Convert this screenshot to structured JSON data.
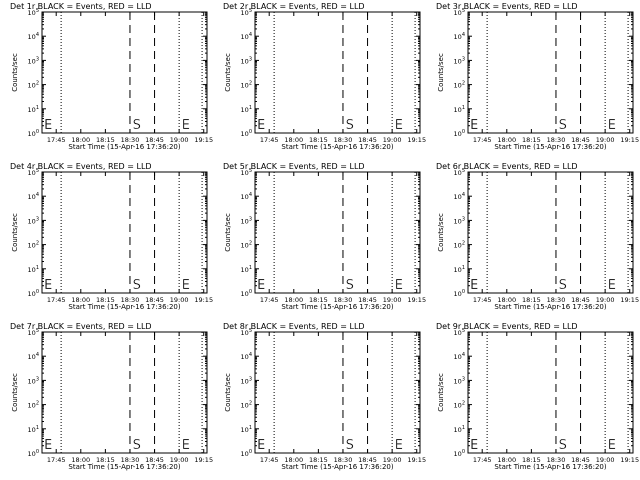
{
  "chart_data": [
    {
      "type": "line",
      "title": "Det 1r BLACK = Events, RED = LLD",
      "ylabel": "Counts/sec",
      "xlabel": "Start Time (15-Apr-16 17:36:20)",
      "x_ticks": [
        "17:45",
        "18:00",
        "18:15",
        "18:30",
        "18:45",
        "19:00",
        "19:15"
      ],
      "y_ticks": [
        "10^0",
        "10^1",
        "10^2",
        "10^3",
        "10^4",
        "10^5"
      ],
      "y_scale": "log",
      "series": [],
      "markers": [
        {
          "label": "E",
          "time": "17:37"
        },
        {
          "label": "S",
          "time": "18:31"
        },
        {
          "label": "E",
          "time": "19:01"
        }
      ],
      "dotted_lines": [
        "17:48",
        "19:00",
        "19:14"
      ],
      "dashed_lines": [
        "18:30",
        "18:45"
      ]
    },
    {
      "type": "line",
      "title": "Det 2r BLACK = Events, RED = LLD",
      "ylabel": "Counts/sec",
      "xlabel": "Start Time (15-Apr-16 17:36:20)",
      "x_ticks": [
        "17:45",
        "18:00",
        "18:15",
        "18:30",
        "18:45",
        "19:00",
        "19:15"
      ],
      "y_ticks": [
        "10^0",
        "10^1",
        "10^2",
        "10^3",
        "10^4",
        "10^5"
      ],
      "y_scale": "log",
      "series": [],
      "markers": [
        {
          "label": "E",
          "time": "17:37"
        },
        {
          "label": "S",
          "time": "18:31"
        },
        {
          "label": "E",
          "time": "19:01"
        }
      ],
      "dotted_lines": [
        "17:48",
        "19:00",
        "19:14"
      ],
      "dashed_lines": [
        "18:30",
        "18:45"
      ]
    },
    {
      "type": "line",
      "title": "Det 3r BLACK = Events, RED = LLD",
      "ylabel": "Counts/sec",
      "xlabel": "Start Time (15-Apr-16 17:36:20)",
      "x_ticks": [
        "17:45",
        "18:00",
        "18:15",
        "18:30",
        "18:45",
        "19:00",
        "19:15"
      ],
      "y_ticks": [
        "10^0",
        "10^1",
        "10^2",
        "10^3",
        "10^4",
        "10^5"
      ],
      "y_scale": "log",
      "series": [],
      "markers": [
        {
          "label": "E",
          "time": "17:37"
        },
        {
          "label": "S",
          "time": "18:31"
        },
        {
          "label": "E",
          "time": "19:01"
        }
      ],
      "dotted_lines": [
        "17:48",
        "19:00",
        "19:14"
      ],
      "dashed_lines": [
        "18:30",
        "18:45"
      ]
    },
    {
      "type": "line",
      "title": "Det 4r BLACK = Events, RED = LLD",
      "ylabel": "Counts/sec",
      "xlabel": "Start Time (15-Apr-16 17:36:20)",
      "x_ticks": [
        "17:45",
        "18:00",
        "18:15",
        "18:30",
        "18:45",
        "19:00",
        "19:15"
      ],
      "y_ticks": [
        "10^0",
        "10^1",
        "10^2",
        "10^3",
        "10^4",
        "10^5"
      ],
      "y_scale": "log",
      "series": [],
      "markers": [
        {
          "label": "E",
          "time": "17:37"
        },
        {
          "label": "S",
          "time": "18:31"
        },
        {
          "label": "E",
          "time": "19:01"
        }
      ],
      "dotted_lines": [
        "17:48",
        "19:00",
        "19:14"
      ],
      "dashed_lines": [
        "18:30",
        "18:45"
      ]
    },
    {
      "type": "line",
      "title": "Det 5r BLACK = Events, RED = LLD",
      "ylabel": "Counts/sec",
      "xlabel": "Start Time (15-Apr-16 17:36:20)",
      "x_ticks": [
        "17:45",
        "18:00",
        "18:15",
        "18:30",
        "18:45",
        "19:00",
        "19:15"
      ],
      "y_ticks": [
        "10^0",
        "10^1",
        "10^2",
        "10^3",
        "10^4",
        "10^5"
      ],
      "y_scale": "log",
      "series": [],
      "markers": [
        {
          "label": "E",
          "time": "17:37"
        },
        {
          "label": "S",
          "time": "18:31"
        },
        {
          "label": "E",
          "time": "19:01"
        }
      ],
      "dotted_lines": [
        "17:48",
        "19:00",
        "19:14"
      ],
      "dashed_lines": [
        "18:30",
        "18:45"
      ]
    },
    {
      "type": "line",
      "title": "Det 6r BLACK = Events, RED = LLD",
      "ylabel": "Counts/sec",
      "xlabel": "Start Time (15-Apr-16 17:36:20)",
      "x_ticks": [
        "17:45",
        "18:00",
        "18:15",
        "18:30",
        "18:45",
        "19:00",
        "19:15"
      ],
      "y_ticks": [
        "10^0",
        "10^1",
        "10^2",
        "10^3",
        "10^4",
        "10^5"
      ],
      "y_scale": "log",
      "series": [],
      "markers": [
        {
          "label": "E",
          "time": "17:37"
        },
        {
          "label": "S",
          "time": "18:31"
        },
        {
          "label": "E",
          "time": "19:01"
        }
      ],
      "dotted_lines": [
        "17:48",
        "19:00",
        "19:14"
      ],
      "dashed_lines": [
        "18:30",
        "18:45"
      ]
    },
    {
      "type": "line",
      "title": "Det 7r BLACK = Events, RED = LLD",
      "ylabel": "Counts/sec",
      "xlabel": "Start Time (15-Apr-16 17:36:20)",
      "x_ticks": [
        "17:45",
        "18:00",
        "18:15",
        "18:30",
        "18:45",
        "19:00",
        "19:15"
      ],
      "y_ticks": [
        "10^0",
        "10^1",
        "10^2",
        "10^3",
        "10^4",
        "10^5"
      ],
      "y_scale": "log",
      "series": [],
      "markers": [
        {
          "label": "E",
          "time": "17:37"
        },
        {
          "label": "S",
          "time": "18:31"
        },
        {
          "label": "E",
          "time": "19:01"
        }
      ],
      "dotted_lines": [
        "17:48",
        "19:00",
        "19:14"
      ],
      "dashed_lines": [
        "18:30",
        "18:45"
      ]
    },
    {
      "type": "line",
      "title": "Det 8r BLACK = Events, RED = LLD",
      "ylabel": "Counts/sec",
      "xlabel": "Start Time (15-Apr-16 17:36:20)",
      "x_ticks": [
        "17:45",
        "18:00",
        "18:15",
        "18:30",
        "18:45",
        "19:00",
        "19:15"
      ],
      "y_ticks": [
        "10^0",
        "10^1",
        "10^2",
        "10^3",
        "10^4",
        "10^5"
      ],
      "y_scale": "log",
      "series": [],
      "markers": [
        {
          "label": "E",
          "time": "17:37"
        },
        {
          "label": "S",
          "time": "18:31"
        },
        {
          "label": "E",
          "time": "19:01"
        }
      ],
      "dotted_lines": [
        "17:48",
        "19:00",
        "19:14"
      ],
      "dashed_lines": [
        "18:30",
        "18:45"
      ]
    },
    {
      "type": "line",
      "title": "Det 9r BLACK = Events, RED = LLD",
      "ylabel": "Counts/sec",
      "xlabel": "Start Time (15-Apr-16 17:36:20)",
      "x_ticks": [
        "17:45",
        "18:00",
        "18:15",
        "18:30",
        "18:45",
        "19:00",
        "19:15"
      ],
      "y_ticks": [
        "10^0",
        "10^1",
        "10^2",
        "10^3",
        "10^4",
        "10^5"
      ],
      "y_scale": "log",
      "series": [],
      "markers": [
        {
          "label": "E",
          "time": "17:37"
        },
        {
          "label": "S",
          "time": "18:31"
        },
        {
          "label": "E",
          "time": "19:01"
        }
      ],
      "dotted_lines": [
        "17:48",
        "19:00",
        "19:14"
      ],
      "dashed_lines": [
        "18:30",
        "18:45"
      ]
    }
  ]
}
